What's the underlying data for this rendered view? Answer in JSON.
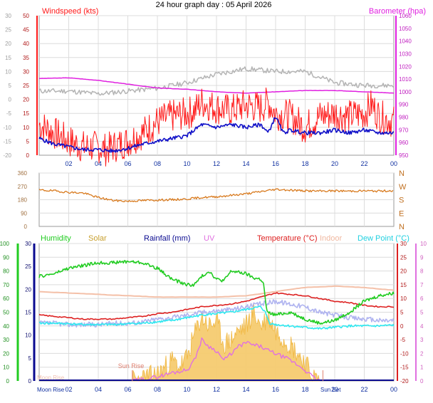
{
  "title": "24 hour graph day : 05 April 2026",
  "colors": {
    "wind": "#ff1a1a",
    "wind_avg": "#1010c8",
    "baro": "#e020e0",
    "gray": "#b4b4b4",
    "winddir": "#d87a1e",
    "humidity": "#22cc22",
    "solar": "#f0b438",
    "rainfall": "#0a0a90",
    "uv": "#e070e0",
    "temperature": "#dd2020",
    "indoor": "#f4c0a8",
    "dewpoint": "#30e8f0",
    "apparent": "#b0b4f0",
    "sun_rise": "#e08070",
    "moon_rise": "#6a6acc"
  },
  "panels": {
    "wind": {
      "label": "Windspeed (kts)"
    },
    "baro": {
      "label": "Barometer (hpa)"
    },
    "bottom_labels": {
      "humidity": "Humidity",
      "solar": "Solar",
      "rainfall": "Rainfall (mm)",
      "uv": "UV",
      "temperature": "Temperature (°C)",
      "indoor": "Indoor",
      "dewpoint": "Dew Point (°C)"
    },
    "annotations": {
      "sun_rise": "Sun Rise",
      "sun_set": "Sun Set",
      "moon_rise": "Moon Rise",
      "moon_set": "Moon Rise"
    }
  },
  "chart_data": [
    {
      "type": "line",
      "title": "24 hour graph day : 05 April 2026",
      "xlabel": "",
      "x_ticks": [
        "02",
        "04",
        "06",
        "08",
        "10",
        "12",
        "14",
        "16",
        "18",
        "20",
        "22",
        "00"
      ],
      "left_axis": {
        "label": "Windspeed (kts)",
        "ticks": [
          0,
          5,
          10,
          15,
          20,
          25,
          30,
          35,
          40,
          45,
          50
        ],
        "range": [
          0,
          50
        ]
      },
      "gray_axis": {
        "ticks": [
          30,
          25,
          20,
          15,
          10,
          5,
          0,
          -5,
          -10,
          -15,
          -20
        ],
        "range": [
          -20,
          30
        ]
      },
      "right_axis": {
        "label": "Barometer (hpa)",
        "ticks": [
          950,
          960,
          970,
          980,
          990,
          1000,
          1010,
          1020,
          1030,
          1040,
          1050,
          1060
        ],
        "range": [
          950,
          1060
        ]
      },
      "grid": true,
      "series": [
        {
          "name": "Windspeed (kts)",
          "axis": "left",
          "hours": [
            0,
            1,
            2,
            3,
            4,
            4.5,
            5,
            6,
            7,
            8,
            9,
            10,
            10.5,
            11,
            11.5,
            12,
            13,
            14,
            15,
            15.5,
            16,
            17,
            18,
            19,
            20,
            21,
            22,
            22.5,
            23,
            24
          ],
          "values": [
            11,
            8,
            5,
            3,
            3,
            2,
            3,
            5,
            8,
            12,
            14,
            15,
            16,
            19,
            18,
            17,
            16,
            18,
            17,
            19,
            15,
            14,
            10,
            14,
            15,
            14,
            15,
            18,
            14,
            12
          ]
        },
        {
          "name": "Wind average",
          "axis": "left",
          "hours": [
            0,
            1,
            2,
            3,
            4,
            5,
            6,
            7,
            8,
            9,
            10,
            11,
            12,
            13,
            14,
            15,
            15.5,
            16,
            16.5,
            17,
            18,
            19,
            20,
            21,
            22,
            23,
            24
          ],
          "values": [
            6,
            4,
            3,
            2,
            2,
            1.5,
            2.5,
            4,
            5,
            6,
            7,
            11,
            10,
            11,
            10,
            11,
            8,
            14,
            8,
            9,
            8,
            8,
            9,
            8,
            9,
            8,
            8
          ]
        },
        {
          "name": "Barometer (hpa)",
          "axis": "right",
          "hours": [
            0,
            2,
            4,
            6,
            8,
            10,
            12,
            14,
            16,
            18,
            20,
            22,
            24
          ],
          "values": [
            1010.5,
            1011,
            1009,
            1006,
            1003,
            1002,
            1000,
            999,
            1000,
            1001,
            1001,
            1000,
            999
          ]
        },
        {
          "name": "",
          "axis": "gray",
          "hours": [
            0,
            2,
            4,
            6,
            8,
            10,
            12,
            14,
            16,
            18,
            20,
            22,
            24
          ],
          "values": [
            3,
            3,
            2,
            3,
            4,
            6,
            9,
            11,
            10,
            10,
            6,
            5,
            5
          ]
        }
      ]
    },
    {
      "type": "line",
      "x_ticks": [
        "02",
        "04",
        "06",
        "08",
        "10",
        "12",
        "14",
        "16",
        "18",
        "20",
        "22",
        "00"
      ],
      "y_axis": {
        "ticks": [
          0,
          90,
          180,
          270,
          360
        ],
        "range": [
          0,
          360
        ]
      },
      "compass": [
        "N",
        "W",
        "S",
        "E",
        "N"
      ],
      "grid": true,
      "series": [
        {
          "name": "",
          "hours": [
            0,
            1,
            2,
            3,
            4,
            5,
            6,
            7,
            8,
            9,
            10,
            11,
            12,
            13,
            14,
            15,
            16,
            17,
            18,
            19,
            20,
            21,
            22,
            23,
            24
          ],
          "values": [
            245,
            240,
            230,
            225,
            195,
            175,
            170,
            175,
            178,
            180,
            185,
            195,
            200,
            210,
            220,
            235,
            250,
            245,
            240,
            238,
            240,
            238,
            240,
            238,
            242
          ]
        }
      ]
    },
    {
      "type": "line",
      "x_ticks": [
        "02",
        "04",
        "06",
        "08",
        "10",
        "12",
        "14",
        "16",
        "18",
        "20",
        "22",
        "00"
      ],
      "humidity_axis": {
        "label": "Humidity",
        "ticks": [
          0,
          10,
          20,
          30,
          40,
          50,
          60,
          70,
          80,
          90,
          100
        ],
        "range": [
          0,
          100
        ]
      },
      "rain_axis": {
        "label": "Rainfall (mm)",
        "ticks": [
          0,
          5,
          10,
          15,
          20,
          25,
          30
        ],
        "range": [
          0,
          30
        ]
      },
      "temperature_axis": {
        "label": "Temperature (°C)",
        "ticks": [
          -20,
          -15,
          -10,
          -5,
          0,
          5,
          10,
          15,
          20,
          25,
          30
        ],
        "range": [
          -20,
          30
        ]
      },
      "uv_axis": {
        "label": "UV",
        "ticks": [
          0,
          1,
          2,
          3,
          4,
          5,
          6,
          7,
          8,
          9,
          10
        ],
        "range": [
          0,
          10
        ]
      },
      "legend": [
        "Humidity",
        "Solar",
        "Rainfall (mm)",
        "UV",
        "Temperature (°C)",
        "Indoor",
        "Dew Point (°C)"
      ],
      "grid": true,
      "annotations": [
        "Sun Rise",
        "Sun Set",
        "Moon Rise"
      ],
      "series": [
        {
          "name": "Humidity",
          "axis": "humidity",
          "hours": [
            0,
            1,
            2,
            3,
            3.5,
            4,
            5,
            6,
            7,
            8,
            9,
            9.5,
            10,
            10.5,
            11,
            11.5,
            12,
            12.5,
            13,
            14,
            14.5,
            15,
            15.2,
            15.4,
            16,
            17,
            18,
            19,
            20,
            21,
            22,
            23,
            24
          ],
          "values": [
            76,
            78,
            82,
            84,
            85,
            86,
            86,
            87,
            86,
            82,
            74,
            72,
            70,
            70,
            76,
            80,
            74,
            73,
            80,
            78,
            75,
            74,
            70,
            50,
            48,
            50,
            45,
            42,
            44,
            50,
            58,
            62,
            64
          ]
        },
        {
          "name": "Temperature (°C)",
          "axis": "temperature",
          "hours": [
            0,
            1,
            2,
            3,
            4,
            5,
            6,
            7,
            8,
            9,
            10,
            11,
            12,
            13,
            14,
            15,
            16,
            17,
            18,
            19,
            20,
            21,
            22,
            23,
            24
          ],
          "values": [
            4,
            3.5,
            3,
            2.5,
            2.5,
            2.5,
            3,
            3.5,
            4.5,
            5,
            6,
            7,
            7.5,
            8,
            9,
            10.5,
            12,
            11.5,
            11,
            10,
            9,
            8.5,
            7.5,
            7,
            7
          ]
        },
        {
          "name": "Indoor",
          "axis": "temperature",
          "hours": [
            0,
            2,
            4,
            6,
            8,
            10,
            12,
            14,
            16,
            18,
            20,
            22,
            24
          ],
          "values": [
            12.5,
            12,
            11.5,
            11,
            10.5,
            10.5,
            10.5,
            11,
            12.5,
            14,
            14.5,
            14,
            13
          ]
        },
        {
          "name": "Dew Point (°C)",
          "axis": "temperature",
          "hours": [
            0,
            1,
            2,
            3,
            4,
            5,
            6,
            7,
            8,
            9,
            10,
            11,
            12,
            13,
            14,
            15,
            15.3,
            15.6,
            16,
            17,
            18,
            19,
            20,
            21,
            22,
            23,
            24
          ],
          "values": [
            1,
            1,
            0.8,
            0.5,
            0.5,
            0.5,
            0.8,
            1,
            1.5,
            2,
            3,
            4,
            4.5,
            5,
            6,
            7,
            5,
            1,
            0.5,
            0,
            -0.5,
            -1,
            -0.5,
            0,
            0,
            0,
            0.3
          ]
        },
        {
          "name": "",
          "axis": "temperature",
          "hours": [
            0,
            1,
            2,
            3,
            4,
            5,
            6,
            7,
            8,
            9,
            10,
            11,
            12,
            13,
            14,
            15,
            16,
            17,
            18,
            19,
            20,
            21,
            22,
            23,
            24
          ],
          "values": [
            1,
            1,
            0.5,
            0.5,
            0.5,
            1,
            1,
            1.5,
            2.5,
            3,
            4,
            5,
            5.5,
            6,
            7,
            8,
            9,
            8,
            7,
            5,
            4,
            3,
            2.5,
            2,
            2
          ]
        },
        {
          "name": "Solar",
          "axis": "rain",
          "hours": [
            6.3,
            7,
            8,
            8.5,
            9,
            9.5,
            10,
            10.5,
            11,
            11.5,
            12,
            12.5,
            13,
            13.5,
            14,
            14.5,
            15,
            15.5,
            16,
            17,
            18,
            18.5,
            19
          ],
          "values": [
            0,
            0.5,
            1.5,
            3,
            4.5,
            3,
            5,
            10,
            14,
            12,
            13,
            8,
            9,
            11,
            12,
            15,
            12,
            14,
            11,
            8,
            4,
            1,
            0
          ]
        },
        {
          "name": "UV",
          "axis": "uv",
          "hours": [
            6.3,
            8,
            9,
            10,
            10.5,
            11,
            11.5,
            12,
            12.5,
            13,
            13.5,
            14,
            14.5,
            15,
            15.5,
            16,
            17,
            18,
            18.5,
            19
          ],
          "values": [
            0,
            0.3,
            0.6,
            0.8,
            1.5,
            3,
            2.5,
            2.2,
            1.5,
            2,
            2.5,
            2.8,
            2.6,
            2.5,
            2.2,
            2,
            1.5,
            0.8,
            0.3,
            0
          ]
        },
        {
          "name": "Rainfall (mm)",
          "axis": "rain",
          "hours": [
            0,
            24
          ],
          "values": [
            0,
            0
          ]
        }
      ]
    }
  ]
}
